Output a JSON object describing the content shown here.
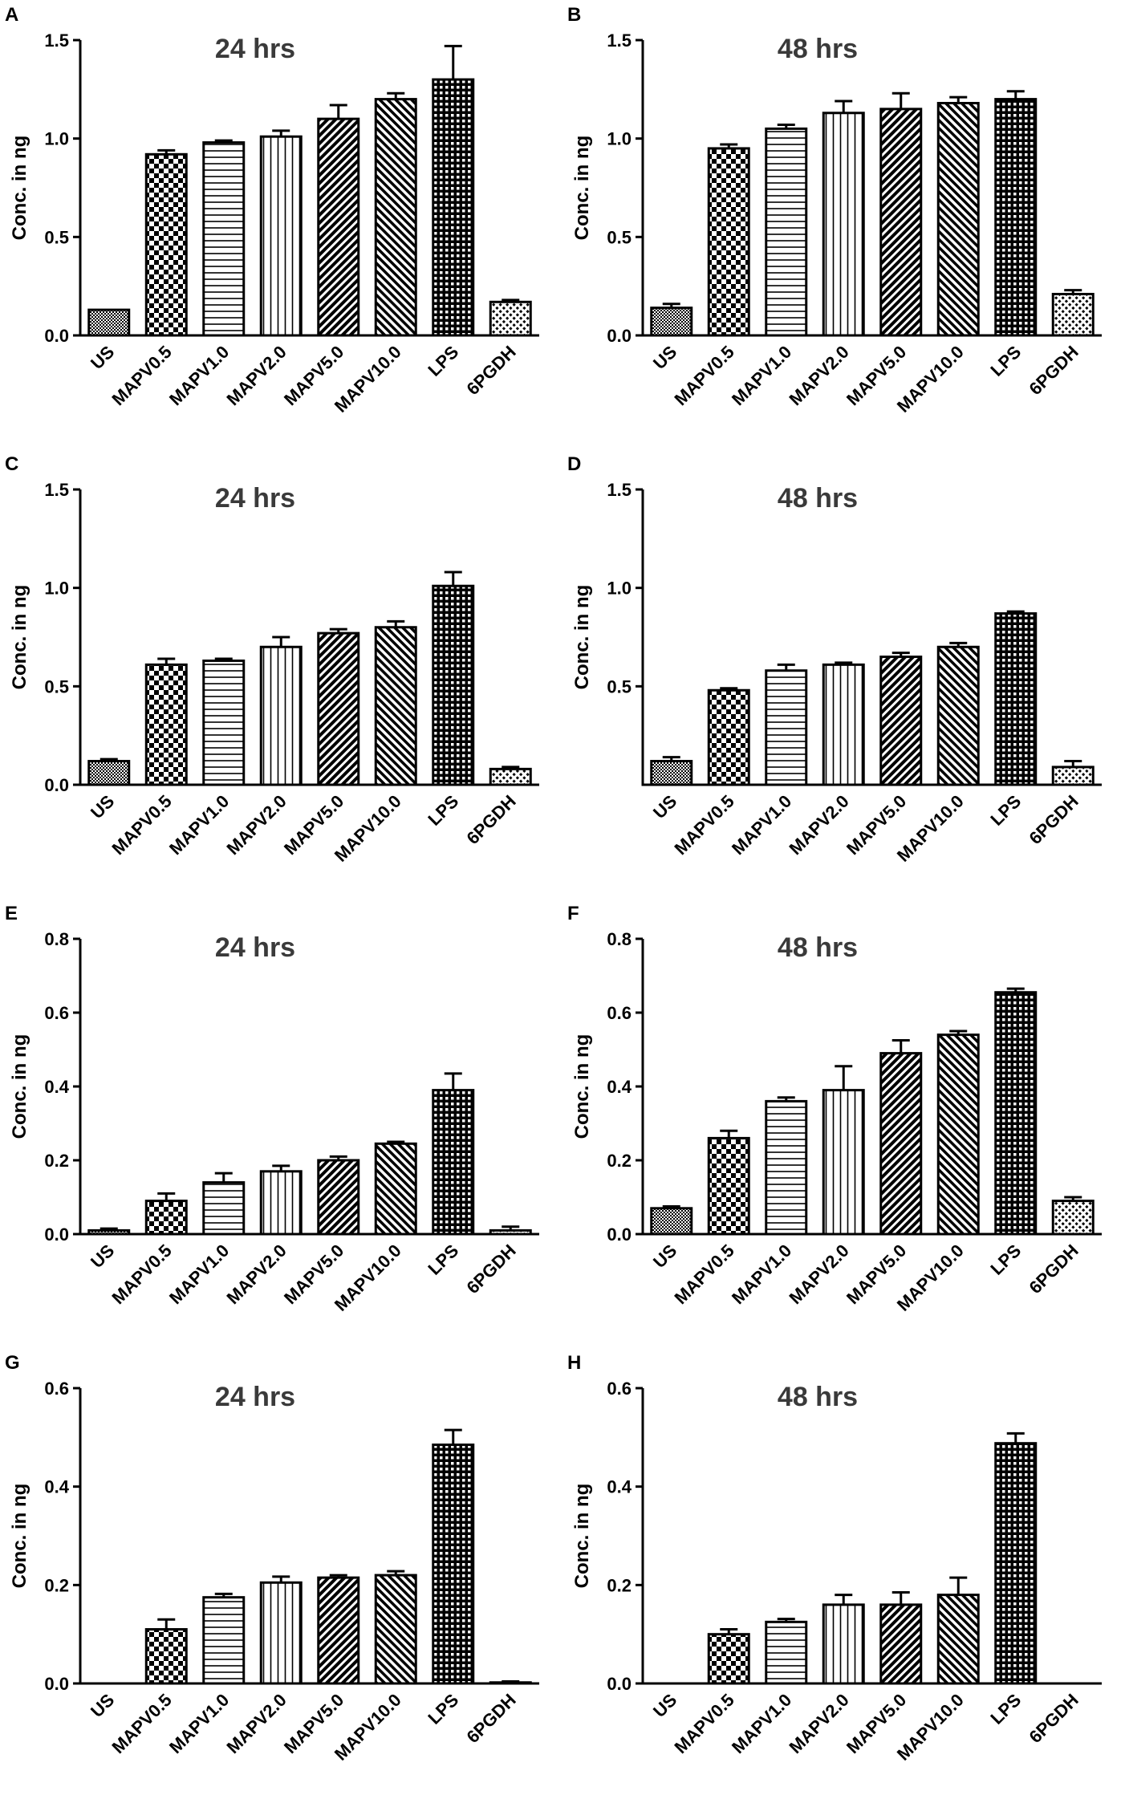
{
  "chart_data": [
    {
      "panel": "A",
      "type": "bar",
      "title": "24 hrs",
      "ylabel": "Conc. in ng",
      "xlabel": "",
      "categories": [
        "US",
        "MAPV0.5",
        "MAPV1.0",
        "MAPV2.0",
        "MAPV5.0",
        "MAPV10.0",
        "LPS",
        "6PGDH"
      ],
      "values": [
        0.13,
        0.92,
        0.98,
        1.01,
        1.1,
        1.2,
        1.3,
        0.17
      ],
      "errors": [
        0.0,
        0.02,
        0.01,
        0.03,
        0.07,
        0.03,
        0.17,
        0.01
      ],
      "ylim": [
        0,
        1.5
      ],
      "yticks": [
        "0.0",
        "0.5",
        "1.0",
        "1.5"
      ],
      "ytick_values": [
        0,
        0.5,
        1.0,
        1.5
      ]
    },
    {
      "panel": "B",
      "type": "bar",
      "title": "48 hrs",
      "ylabel": "Conc. in ng",
      "xlabel": "",
      "categories": [
        "US",
        "MAPV0.5",
        "MAPV1.0",
        "MAPV2.0",
        "MAPV5.0",
        "MAPV10.0",
        "LPS",
        "6PGDH"
      ],
      "values": [
        0.14,
        0.95,
        1.05,
        1.13,
        1.15,
        1.18,
        1.2,
        0.21
      ],
      "errors": [
        0.02,
        0.02,
        0.02,
        0.06,
        0.08,
        0.03,
        0.04,
        0.02
      ],
      "ylim": [
        0,
        1.5
      ],
      "yticks": [
        "0.0",
        "0.5",
        "1.0",
        "1.5"
      ],
      "ytick_values": [
        0,
        0.5,
        1.0,
        1.5
      ]
    },
    {
      "panel": "C",
      "type": "bar",
      "title": "24 hrs",
      "ylabel": "Conc. in ng",
      "xlabel": "",
      "categories": [
        "US",
        "MAPV0.5",
        "MAPV1.0",
        "MAPV2.0",
        "MAPV5.0",
        "MAPV10.0",
        "LPS",
        "6PGDH"
      ],
      "values": [
        0.12,
        0.61,
        0.63,
        0.7,
        0.77,
        0.8,
        1.01,
        0.08
      ],
      "errors": [
        0.01,
        0.03,
        0.01,
        0.05,
        0.02,
        0.03,
        0.07,
        0.01
      ],
      "ylim": [
        0,
        1.5
      ],
      "yticks": [
        "0.0",
        "0.5",
        "1.0",
        "1.5"
      ],
      "ytick_values": [
        0,
        0.5,
        1.0,
        1.5
      ]
    },
    {
      "panel": "D",
      "type": "bar",
      "title": "48 hrs",
      "ylabel": "Conc. in ng",
      "xlabel": "",
      "categories": [
        "US",
        "MAPV0.5",
        "MAPV1.0",
        "MAPV2.0",
        "MAPV5.0",
        "MAPV10.0",
        "LPS",
        "6PGDH"
      ],
      "values": [
        0.12,
        0.48,
        0.58,
        0.61,
        0.65,
        0.7,
        0.87,
        0.09
      ],
      "errors": [
        0.02,
        0.01,
        0.03,
        0.01,
        0.02,
        0.02,
        0.01,
        0.03
      ],
      "ylim": [
        0,
        1.5
      ],
      "yticks": [
        "0.5",
        "1.0",
        "1.5"
      ],
      "ytick_values": [
        0.5,
        1.0,
        1.5
      ]
    },
    {
      "panel": "E",
      "type": "bar",
      "title": "24 hrs",
      "ylabel": "Conc. in ng",
      "xlabel": "",
      "categories": [
        "US",
        "MAPV0.5",
        "MAPV1.0",
        "MAPV2.0",
        "MAPV5.0",
        "MAPV10.0",
        "LPS",
        "6PGDH"
      ],
      "values": [
        0.01,
        0.09,
        0.14,
        0.17,
        0.2,
        0.245,
        0.39,
        0.01
      ],
      "errors": [
        0.005,
        0.02,
        0.025,
        0.015,
        0.01,
        0.005,
        0.045,
        0.01
      ],
      "ylim": [
        0,
        0.8
      ],
      "yticks": [
        "0.0",
        "0.2",
        "0.4",
        "0.6",
        "0.8"
      ],
      "ytick_values": [
        0,
        0.2,
        0.4,
        0.6,
        0.8
      ]
    },
    {
      "panel": "F",
      "type": "bar",
      "title": "48 hrs",
      "ylabel": "Conc. in ng",
      "xlabel": "",
      "categories": [
        "US",
        "MAPV0.5",
        "MAPV1.0",
        "MAPV2.0",
        "MAPV5.0",
        "MAPV10.0",
        "LPS",
        "6PGDH"
      ],
      "values": [
        0.07,
        0.26,
        0.36,
        0.39,
        0.49,
        0.54,
        0.655,
        0.09
      ],
      "errors": [
        0.005,
        0.02,
        0.01,
        0.065,
        0.035,
        0.01,
        0.01,
        0.01
      ],
      "ylim": [
        0,
        0.8
      ],
      "yticks": [
        "0.0",
        "0.2",
        "0.4",
        "0.6",
        "0.8"
      ],
      "ytick_values": [
        0,
        0.2,
        0.4,
        0.6,
        0.8
      ]
    },
    {
      "panel": "G",
      "type": "bar",
      "title": "24 hrs",
      "ylabel": "Conc. in ng",
      "xlabel": "",
      "categories": [
        "US",
        "MAPV0.5",
        "MAPV1.0",
        "MAPV2.0",
        "MAPV5.0",
        "MAPV10.0",
        "LPS",
        "6PGDH"
      ],
      "values": [
        0.0,
        0.11,
        0.175,
        0.205,
        0.215,
        0.22,
        0.485,
        0.002
      ],
      "errors": [
        0.0,
        0.02,
        0.007,
        0.012,
        0.005,
        0.008,
        0.03,
        0.002
      ],
      "ylim": [
        0,
        0.6
      ],
      "yticks": [
        "0.0",
        "0.2",
        "0.4",
        "0.6"
      ],
      "ytick_values": [
        0,
        0.2,
        0.4,
        0.6
      ]
    },
    {
      "panel": "H",
      "type": "bar",
      "title": "48 hrs",
      "ylabel": "Conc. in ng",
      "xlabel": "",
      "categories": [
        "US",
        "MAPV0.5",
        "MAPV1.0",
        "MAPV2.0",
        "MAPV5.0",
        "MAPV10.0",
        "LPS",
        "6PGDH"
      ],
      "values": [
        0.0,
        0.1,
        0.125,
        0.16,
        0.16,
        0.18,
        0.488,
        0.0
      ],
      "errors": [
        0.0,
        0.01,
        0.006,
        0.02,
        0.025,
        0.035,
        0.02,
        0.0
      ],
      "ylim": [
        0,
        0.6
      ],
      "yticks": [
        "0.0",
        "0.2",
        "0.4",
        "0.6"
      ],
      "ytick_values": [
        0,
        0.2,
        0.4,
        0.6
      ]
    }
  ]
}
